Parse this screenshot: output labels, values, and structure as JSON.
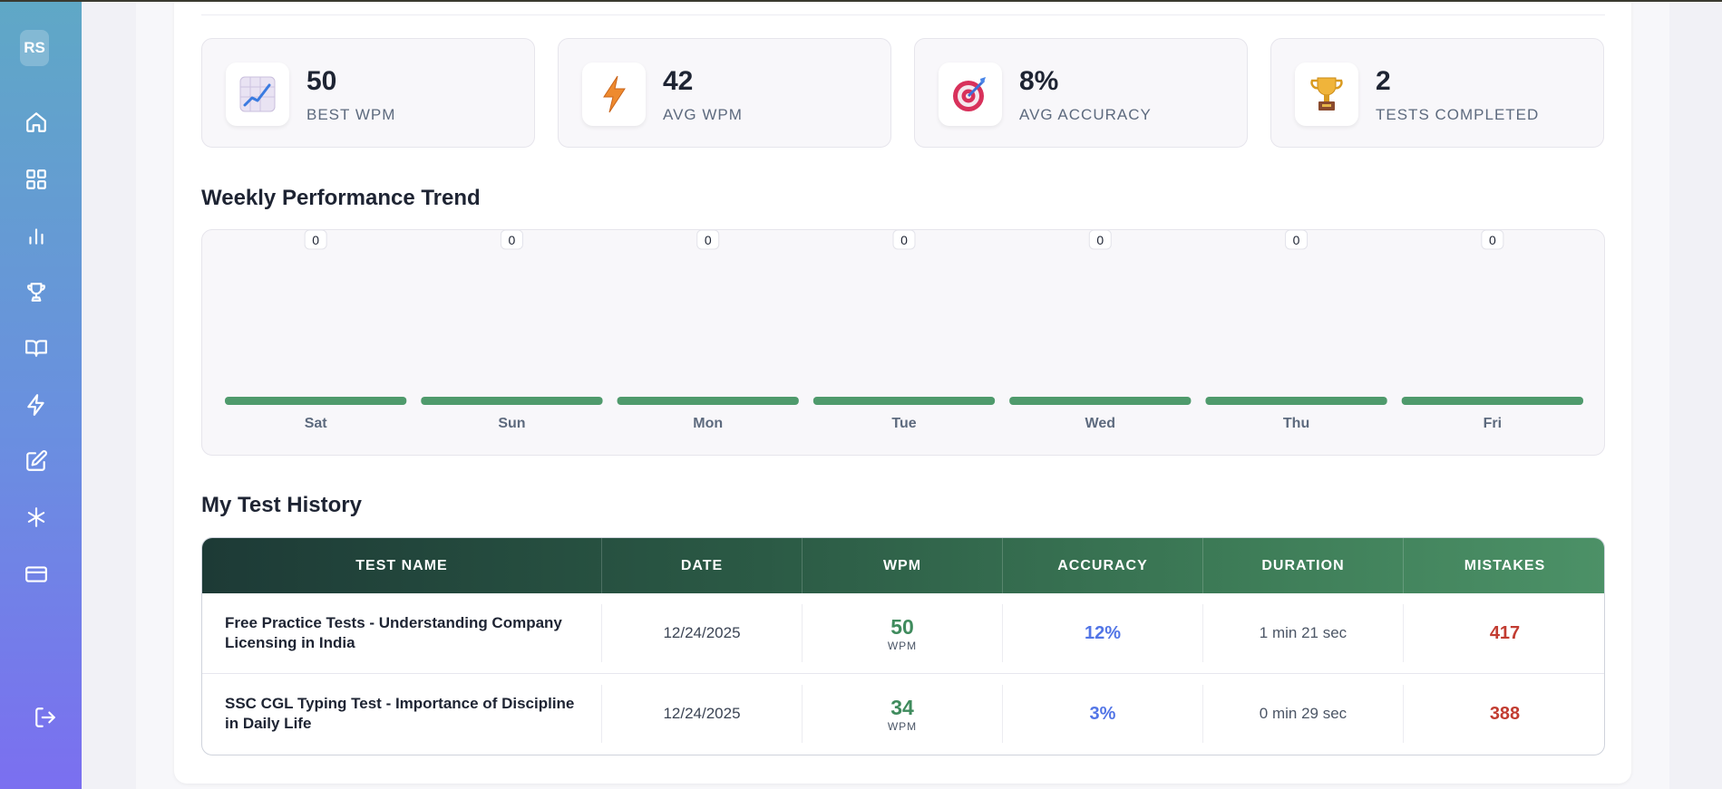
{
  "sidebar": {
    "avatar_initials": "RS",
    "items": [
      {
        "name": "home",
        "icon": "home-icon"
      },
      {
        "name": "dashboard",
        "icon": "grid-icon"
      },
      {
        "name": "statistics",
        "icon": "bar-chart-icon"
      },
      {
        "name": "leaderboard",
        "icon": "trophy-icon"
      },
      {
        "name": "lessons",
        "icon": "book-icon"
      },
      {
        "name": "speed-test",
        "icon": "lightning-icon"
      },
      {
        "name": "practice",
        "icon": "edit-icon"
      },
      {
        "name": "settings",
        "icon": "asterisk-icon"
      },
      {
        "name": "billing",
        "icon": "credit-card-icon"
      }
    ],
    "logout_icon": "logout-icon"
  },
  "stats": [
    {
      "value": "50",
      "label": "BEST WPM",
      "icon": "chart-up-icon"
    },
    {
      "value": "42",
      "label": "AVG WPM",
      "icon": "lightning-icon"
    },
    {
      "value": "8%",
      "label": "AVG ACCURACY",
      "icon": "target-icon"
    },
    {
      "value": "2",
      "label": "TESTS COMPLETED",
      "icon": "trophy-icon"
    }
  ],
  "weekly": {
    "title": "Weekly Performance Trend"
  },
  "chart_data": {
    "type": "bar",
    "categories": [
      "Sat",
      "Sun",
      "Mon",
      "Tue",
      "Wed",
      "Thu",
      "Fri"
    ],
    "values": [
      0,
      0,
      0,
      0,
      0,
      0,
      0
    ],
    "bar_color": "#4f9a6c"
  },
  "history": {
    "title": "My Test History",
    "columns": [
      "TEST NAME",
      "DATE",
      "WPM",
      "ACCURACY",
      "DURATION",
      "MISTAKES"
    ],
    "rows": [
      {
        "name": "Free Practice Tests - Understanding Company Licensing in India",
        "date": "12/24/2025",
        "wpm": "50",
        "wpm_unit": "WPM",
        "accuracy": "12%",
        "duration": "1 min 21 sec",
        "mistakes": "417"
      },
      {
        "name": "SSC CGL Typing Test - Importance of Discipline in Daily Life",
        "date": "12/24/2025",
        "wpm": "34",
        "wpm_unit": "WPM",
        "accuracy": "3%",
        "duration": "0 min 29 sec",
        "mistakes": "388"
      }
    ]
  },
  "colors": {
    "accent_green": "#3f8b5d",
    "accuracy_blue": "#5275e6",
    "mistakes_red": "#c23c31"
  }
}
